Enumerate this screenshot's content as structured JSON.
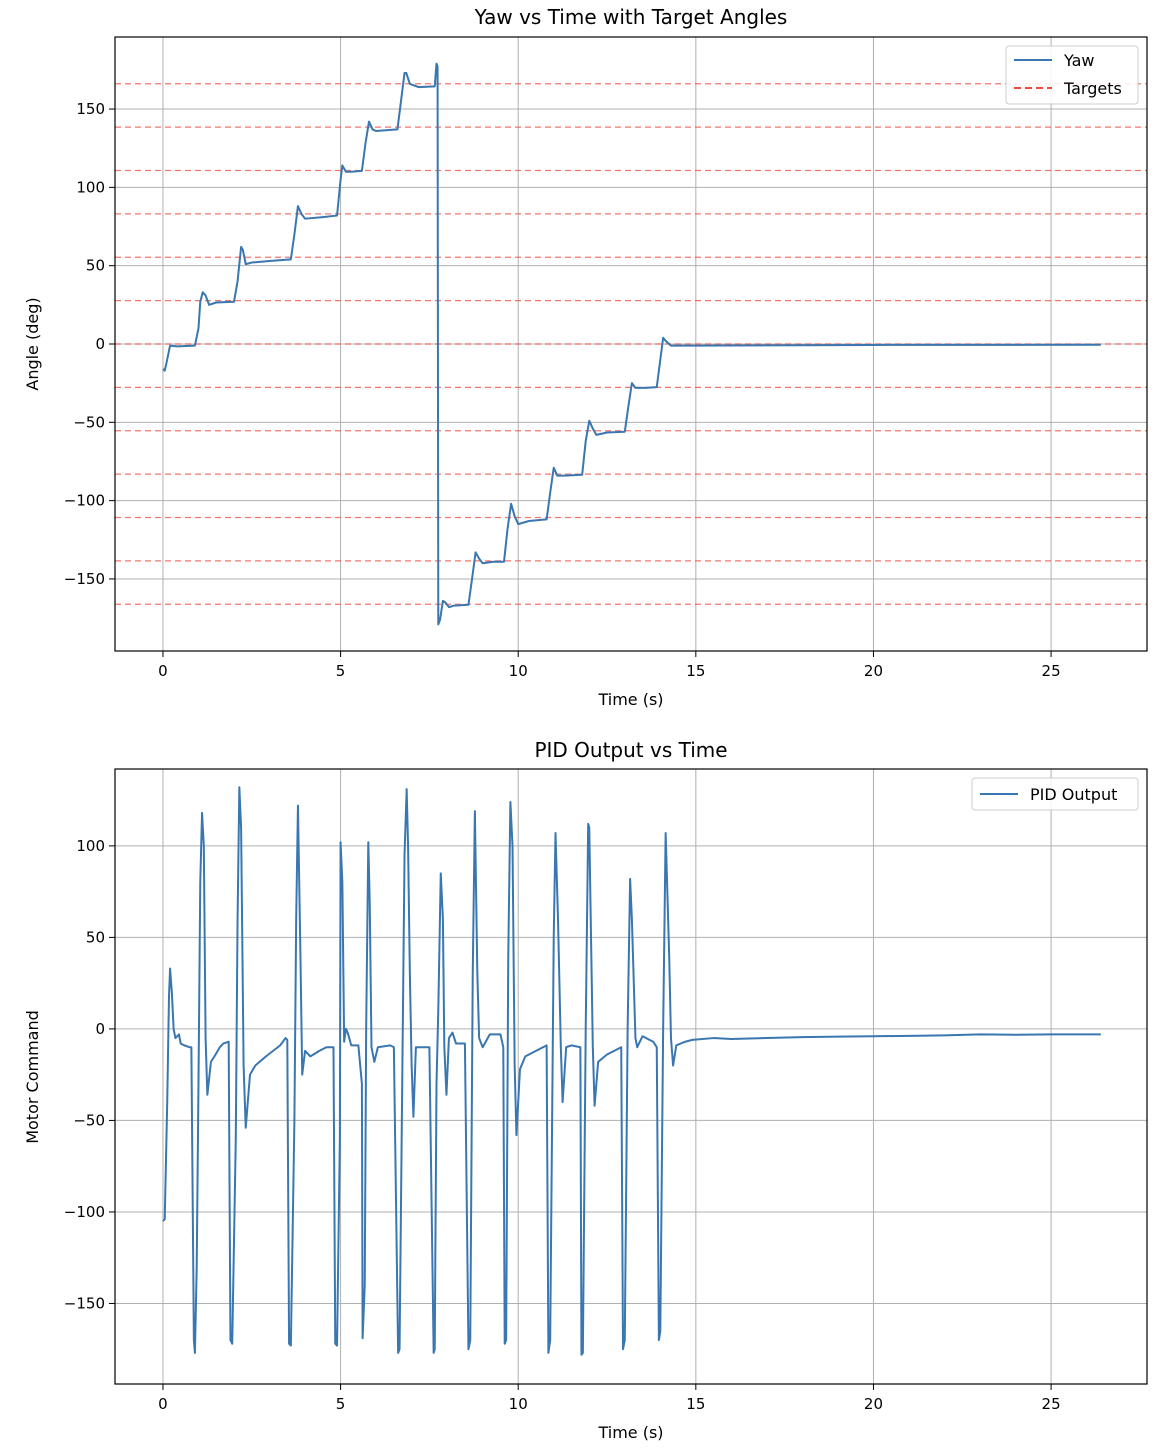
{
  "chart_data": [
    {
      "type": "line",
      "title": "Yaw vs Time with Target Angles",
      "xlabel": "Time (s)",
      "ylabel": "Angle (deg)",
      "xlim": [
        -1.35,
        27.7
      ],
      "ylim": [
        -196,
        196
      ],
      "xticks": [
        0,
        5,
        10,
        15,
        20,
        25
      ],
      "yticks": [
        -150,
        -100,
        -50,
        0,
        50,
        100,
        150
      ],
      "xtick_labels": [
        "0",
        "5",
        "10",
        "15",
        "20",
        "25"
      ],
      "ytick_labels": [
        "−150",
        "−100",
        "−50",
        "0",
        "50",
        "100",
        "150"
      ],
      "grid": true,
      "legend_position": "top-right",
      "series": [
        {
          "name": "Yaw",
          "color": "#3a76af",
          "style": "solid",
          "points": [
            [
              0,
              -16
            ],
            [
              0.05,
              -17
            ],
            [
              0.1,
              -12
            ],
            [
              0.2,
              -1
            ],
            [
              0.4,
              -1.5
            ],
            [
              0.9,
              -1
            ],
            [
              1.0,
              10
            ],
            [
              1.05,
              27
            ],
            [
              1.12,
              33
            ],
            [
              1.2,
              31
            ],
            [
              1.3,
              25
            ],
            [
              1.5,
              26.5
            ],
            [
              2.0,
              27
            ],
            [
              2.1,
              40
            ],
            [
              2.2,
              62
            ],
            [
              2.25,
              60
            ],
            [
              2.33,
              51
            ],
            [
              2.5,
              52
            ],
            [
              3.0,
              53
            ],
            [
              3.6,
              54
            ],
            [
              3.7,
              70
            ],
            [
              3.8,
              88
            ],
            [
              3.9,
              83
            ],
            [
              4.0,
              80
            ],
            [
              4.5,
              81
            ],
            [
              4.9,
              82
            ],
            [
              5.0,
              105
            ],
            [
              5.05,
              114
            ],
            [
              5.15,
              110
            ],
            [
              5.3,
              110
            ],
            [
              5.6,
              110.5
            ],
            [
              5.7,
              128
            ],
            [
              5.8,
              142
            ],
            [
              5.9,
              137
            ],
            [
              6.0,
              136
            ],
            [
              6.6,
              137
            ],
            [
              6.7,
              155
            ],
            [
              6.8,
              173
            ],
            [
              6.85,
              173
            ],
            [
              6.95,
              166
            ],
            [
              7.2,
              164
            ],
            [
              7.65,
              164.5
            ],
            [
              7.7,
              179
            ],
            [
              7.73,
              177
            ],
            [
              7.75,
              -179
            ],
            [
              7.8,
              -176
            ],
            [
              7.88,
              -164
            ],
            [
              7.95,
              -165
            ],
            [
              8.05,
              -168
            ],
            [
              8.2,
              -167
            ],
            [
              8.6,
              -166.5
            ],
            [
              8.7,
              -150
            ],
            [
              8.8,
              -133
            ],
            [
              8.9,
              -137
            ],
            [
              9.0,
              -140
            ],
            [
              9.3,
              -139
            ],
            [
              9.6,
              -139
            ],
            [
              9.7,
              -118
            ],
            [
              9.8,
              -102
            ],
            [
              9.9,
              -110
            ],
            [
              10.0,
              -115
            ],
            [
              10.3,
              -113
            ],
            [
              10.8,
              -112
            ],
            [
              10.9,
              -95
            ],
            [
              11.0,
              -79
            ],
            [
              11.1,
              -84
            ],
            [
              11.3,
              -84
            ],
            [
              11.8,
              -83.5
            ],
            [
              11.9,
              -62
            ],
            [
              12.0,
              -49
            ],
            [
              12.1,
              -54
            ],
            [
              12.2,
              -58
            ],
            [
              12.5,
              -56.5
            ],
            [
              13.0,
              -56
            ],
            [
              13.1,
              -40
            ],
            [
              13.2,
              -25
            ],
            [
              13.3,
              -28
            ],
            [
              13.6,
              -28
            ],
            [
              13.9,
              -27.5
            ],
            [
              14.0,
              -10
            ],
            [
              14.08,
              4
            ],
            [
              14.15,
              2
            ],
            [
              14.3,
              -1
            ],
            [
              15,
              -1
            ],
            [
              20,
              -0.6
            ],
            [
              26.4,
              -0.5
            ]
          ]
        },
        {
          "name": "Targets",
          "color": "#f04a3d",
          "style": "dashed",
          "hlines": [
            -166.15,
            -138.46,
            -110.77,
            -83.08,
            -55.38,
            -27.69,
            0,
            27.69,
            55.38,
            83.08,
            110.77,
            138.46,
            166.15
          ]
        }
      ]
    },
    {
      "type": "line",
      "title": "PID Output vs Time",
      "xlabel": "Time (s)",
      "ylabel": "Motor Command",
      "xlim": [
        -1.35,
        27.7
      ],
      "ylim": [
        -194,
        142
      ],
      "xticks": [
        0,
        5,
        10,
        15,
        20,
        25
      ],
      "yticks": [
        -150,
        -100,
        -50,
        0,
        50,
        100
      ],
      "xtick_labels": [
        "0",
        "5",
        "10",
        "15",
        "20",
        "25"
      ],
      "ytick_labels": [
        "−150",
        "−100",
        "−50",
        "0",
        "50",
        "100"
      ],
      "grid": true,
      "legend_position": "top-right",
      "series": [
        {
          "name": "PID Output",
          "color": "#3a76af",
          "style": "solid",
          "points": [
            [
              0,
              -105
            ],
            [
              0.05,
              -104
            ],
            [
              0.12,
              -40
            ],
            [
              0.17,
              18
            ],
            [
              0.2,
              33
            ],
            [
              0.25,
              20
            ],
            [
              0.3,
              0
            ],
            [
              0.35,
              -5
            ],
            [
              0.45,
              -3
            ],
            [
              0.5,
              -8
            ],
            [
              0.6,
              -9
            ],
            [
              0.75,
              -10
            ],
            [
              0.8,
              -10
            ],
            [
              0.87,
              -170
            ],
            [
              0.9,
              -177
            ],
            [
              0.95,
              -130
            ],
            [
              1.0,
              -30
            ],
            [
              1.05,
              80
            ],
            [
              1.1,
              118
            ],
            [
              1.15,
              100
            ],
            [
              1.2,
              -5
            ],
            [
              1.25,
              -36
            ],
            [
              1.35,
              -18
            ],
            [
              1.45,
              -15
            ],
            [
              1.6,
              -10
            ],
            [
              1.7,
              -8
            ],
            [
              1.85,
              -7
            ],
            [
              1.9,
              -170
            ],
            [
              1.95,
              -172
            ],
            [
              2.05,
              -60
            ],
            [
              2.1,
              60
            ],
            [
              2.15,
              132
            ],
            [
              2.2,
              110
            ],
            [
              2.27,
              -20
            ],
            [
              2.33,
              -54
            ],
            [
              2.45,
              -25
            ],
            [
              2.6,
              -20
            ],
            [
              2.9,
              -15
            ],
            [
              3.3,
              -9
            ],
            [
              3.45,
              -5
            ],
            [
              3.5,
              -6
            ],
            [
              3.55,
              -172
            ],
            [
              3.6,
              -173
            ],
            [
              3.7,
              -50
            ],
            [
              3.75,
              60
            ],
            [
              3.8,
              122
            ],
            [
              3.87,
              40
            ],
            [
              3.92,
              -25
            ],
            [
              4.0,
              -12
            ],
            [
              4.15,
              -15
            ],
            [
              4.4,
              -12
            ],
            [
              4.6,
              -10
            ],
            [
              4.8,
              -10
            ],
            [
              4.85,
              -172
            ],
            [
              4.9,
              -173
            ],
            [
              4.98,
              -60
            ],
            [
              5.0,
              102
            ],
            [
              5.05,
              80
            ],
            [
              5.1,
              -7
            ],
            [
              5.15,
              0
            ],
            [
              5.2,
              -2
            ],
            [
              5.3,
              -9
            ],
            [
              5.5,
              -9
            ],
            [
              5.6,
              -30
            ],
            [
              5.62,
              -169
            ],
            [
              5.68,
              -140
            ],
            [
              5.72,
              0
            ],
            [
              5.78,
              102
            ],
            [
              5.82,
              70
            ],
            [
              5.87,
              -10
            ],
            [
              5.95,
              -18
            ],
            [
              6.05,
              -10
            ],
            [
              6.4,
              -9
            ],
            [
              6.5,
              -10
            ],
            [
              6.62,
              -177
            ],
            [
              6.66,
              -175
            ],
            [
              6.74,
              -20
            ],
            [
              6.8,
              95
            ],
            [
              6.86,
              131
            ],
            [
              6.9,
              100
            ],
            [
              6.95,
              30
            ],
            [
              7.0,
              -20
            ],
            [
              7.05,
              -48
            ],
            [
              7.12,
              -10
            ],
            [
              7.35,
              -10
            ],
            [
              7.5,
              -10
            ],
            [
              7.62,
              -177
            ],
            [
              7.65,
              -175
            ],
            [
              7.7,
              -30
            ],
            [
              7.75,
              10
            ],
            [
              7.82,
              85
            ],
            [
              7.88,
              60
            ],
            [
              7.92,
              -10
            ],
            [
              7.98,
              -36
            ],
            [
              8.05,
              -5
            ],
            [
              8.15,
              -2
            ],
            [
              8.25,
              -8
            ],
            [
              8.4,
              -8
            ],
            [
              8.5,
              -8
            ],
            [
              8.6,
              -175
            ],
            [
              8.65,
              -170
            ],
            [
              8.72,
              30
            ],
            [
              8.78,
              119
            ],
            [
              8.85,
              30
            ],
            [
              8.9,
              -5
            ],
            [
              9.0,
              -10
            ],
            [
              9.2,
              -3
            ],
            [
              9.5,
              -3
            ],
            [
              9.58,
              -10
            ],
            [
              9.62,
              -172
            ],
            [
              9.66,
              -170
            ],
            [
              9.72,
              40
            ],
            [
              9.78,
              124
            ],
            [
              9.84,
              100
            ],
            [
              9.9,
              -20
            ],
            [
              9.95,
              -58
            ],
            [
              10.05,
              -22
            ],
            [
              10.2,
              -15
            ],
            [
              10.5,
              -12
            ],
            [
              10.8,
              -9
            ],
            [
              10.85,
              -177
            ],
            [
              10.9,
              -170
            ],
            [
              11.0,
              50
            ],
            [
              11.05,
              107
            ],
            [
              11.12,
              60
            ],
            [
              11.2,
              -10
            ],
            [
              11.25,
              -40
            ],
            [
              11.35,
              -10
            ],
            [
              11.5,
              -9
            ],
            [
              11.75,
              -10
            ],
            [
              11.78,
              -178
            ],
            [
              11.82,
              -177
            ],
            [
              11.9,
              0
            ],
            [
              11.97,
              112
            ],
            [
              12.0,
              110
            ],
            [
              12.05,
              50
            ],
            [
              12.1,
              -10
            ],
            [
              12.15,
              -42
            ],
            [
              12.25,
              -18
            ],
            [
              12.5,
              -14
            ],
            [
              12.9,
              -10
            ],
            [
              12.95,
              -175
            ],
            [
              13.0,
              -170
            ],
            [
              13.08,
              0
            ],
            [
              13.15,
              82
            ],
            [
              13.2,
              60
            ],
            [
              13.3,
              -5
            ],
            [
              13.35,
              -10
            ],
            [
              13.5,
              -4
            ],
            [
              13.8,
              -7
            ],
            [
              13.9,
              -10
            ],
            [
              13.96,
              -170
            ],
            [
              14.0,
              -165
            ],
            [
              14.08,
              0
            ],
            [
              14.15,
              107
            ],
            [
              14.25,
              40
            ],
            [
              14.3,
              -5
            ],
            [
              14.36,
              -20
            ],
            [
              14.45,
              -9
            ],
            [
              14.7,
              -7
            ],
            [
              14.9,
              -6
            ],
            [
              15.5,
              -5
            ],
            [
              16,
              -5.5
            ],
            [
              17,
              -5
            ],
            [
              18,
              -4.5
            ],
            [
              19,
              -4.2
            ],
            [
              20,
              -4
            ],
            [
              21,
              -3.8
            ],
            [
              22,
              -3.5
            ],
            [
              23,
              -3
            ],
            [
              24,
              -3.2
            ],
            [
              25,
              -3
            ],
            [
              26.4,
              -3
            ]
          ]
        }
      ]
    }
  ]
}
